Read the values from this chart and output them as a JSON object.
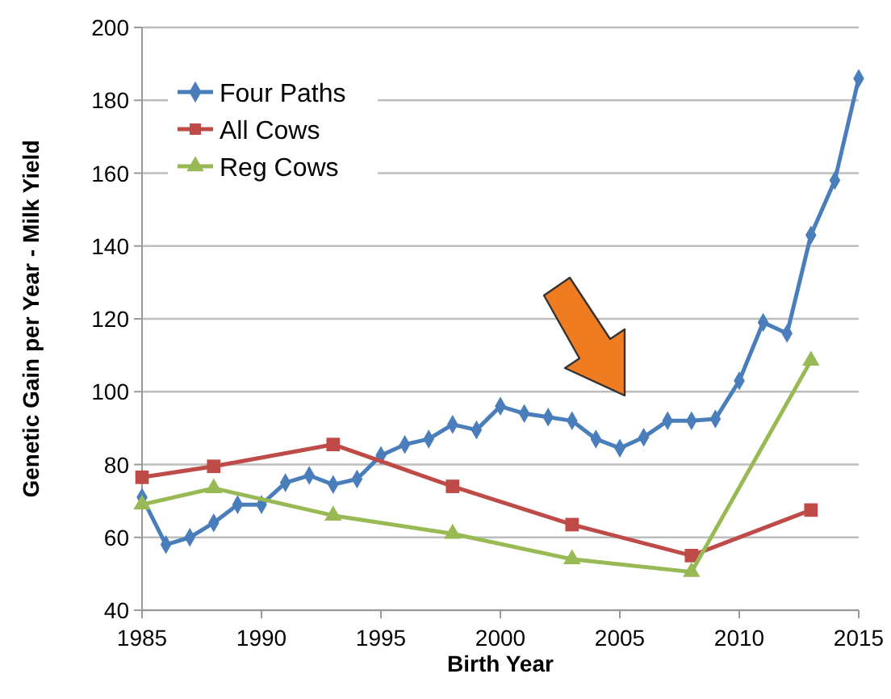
{
  "chart_data": {
    "type": "line",
    "xlabel": "Birth Year",
    "ylabel": "Genetic Gain per Year -  Milk Yield",
    "xlim": [
      1985,
      2015
    ],
    "xticks": [
      1985,
      1990,
      1995,
      2000,
      2005,
      2010,
      2015
    ],
    "ylim": [
      40,
      200
    ],
    "yticks": [
      40,
      60,
      80,
      100,
      120,
      140,
      160,
      180,
      200
    ],
    "grid": "y",
    "legend": "top left",
    "series": [
      {
        "name": "Four Paths",
        "color": "#4a7ebb",
        "marker": "diamond",
        "x": [
          1985,
          1986,
          1987,
          1988,
          1989,
          1990,
          1991,
          1992,
          1993,
          1994,
          1995,
          1996,
          1997,
          1998,
          1999,
          2000,
          2001,
          2002,
          2003,
          2004,
          2005,
          2006,
          2007,
          2008,
          2009,
          2010,
          2011,
          2012,
          2013,
          2014,
          2015
        ],
        "values": [
          71,
          58,
          60,
          64,
          69,
          69,
          75,
          77,
          74.5,
          76,
          82.5,
          85.5,
          87,
          91,
          89.5,
          96,
          94,
          93,
          92,
          87,
          84.5,
          87.5,
          92,
          92,
          92.5,
          103,
          119,
          116,
          143,
          158,
          186
        ]
      },
      {
        "name": "All Cows",
        "color": "#be4b48",
        "marker": "square",
        "x": [
          1985,
          1988,
          1993,
          1998,
          2003,
          2008,
          2013
        ],
        "values": [
          76.5,
          79.5,
          85.5,
          74,
          63.5,
          55,
          67.5
        ]
      },
      {
        "name": "Reg Cows",
        "color": "#98b954",
        "marker": "triangle",
        "x": [
          1985,
          1988,
          1993,
          1998,
          2003,
          2008,
          2013
        ],
        "values": [
          69,
          73.5,
          66,
          61,
          54,
          50.5,
          108.5
        ]
      }
    ]
  }
}
